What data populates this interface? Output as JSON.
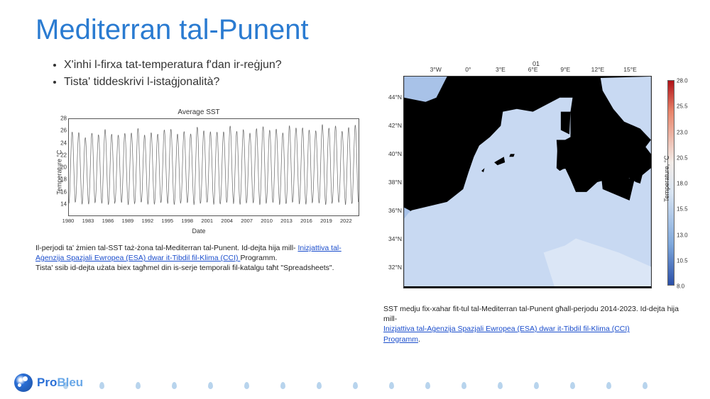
{
  "title": {
    "text": "Mediterran tal-Punent",
    "color": "#2a7bd1",
    "fontsize": 40
  },
  "bullets": [
    "X'inhi l-firxa tat-temperatura f'dan ir-reġjun?",
    "Tista' tiddeskrivi l-istaġjonalità?"
  ],
  "sst_chart": {
    "type": "line",
    "title": "Average SST",
    "ylabel": "Temperature °C",
    "xlabel": "Date",
    "line_color": "#666666",
    "line_width": 0.7,
    "background_color": "#ffffff",
    "border_color": "#555555",
    "xlim": [
      1980,
      2024
    ],
    "ylim": [
      12,
      28
    ],
    "xticks": [
      1980,
      1983,
      1986,
      1989,
      1992,
      1995,
      1998,
      2001,
      2004,
      2007,
      2010,
      2013,
      2016,
      2019,
      2022
    ],
    "yticks": [
      14,
      16,
      18,
      20,
      22,
      24,
      26,
      28
    ],
    "n_cycles": 44,
    "peak_base": 25.5,
    "peak_jitter": 1.5,
    "trough_base": 14.0,
    "trough_jitter": 1.0
  },
  "left_caption": {
    "before_link": "Il-perjodi ta' żmien tal-SST taż-żona tal-Mediterran tal-Punent. Id-dejta hija mill-",
    "link_text": "Inizjattiva tal-Aġenzija Spazjali Ewropea (ESA) dwar it-Tibdil fil-Klima (CCI) ",
    "after_link1": "Programm.",
    "after_link2": "Tista' ssib id-dejta użata biex tagħmel din is-serje temporali fil-katalgu taħt \"Spreadsheets\"."
  },
  "map": {
    "type": "heatmap",
    "title": "01",
    "background_color": "#000000",
    "sea_color": "#c8d9f2",
    "atlantic_color": "#a8c2e8",
    "warm_color": "#dbe6f6",
    "xticks": [
      "3°W",
      "0°",
      "3°E",
      "6°E",
      "9°E",
      "12°E",
      "15°E"
    ],
    "xtick_pos": [
      -3,
      0,
      3,
      6,
      9,
      12,
      15
    ],
    "xlim": [
      -6,
      17
    ],
    "yticks": [
      "32°N",
      "34°N",
      "36°N",
      "38°N",
      "40°N",
      "42°N",
      "44°N"
    ],
    "ytick_pos": [
      32,
      34,
      36,
      38,
      40,
      42,
      44
    ],
    "ylim": [
      30.5,
      45.5
    ],
    "colorbar": {
      "label": "Temperature, °C",
      "min": 8.0,
      "max": 28.0,
      "ticks": [
        8.0,
        10.5,
        13.0,
        15.5,
        18.0,
        20.5,
        23.0,
        25.5,
        28.0
      ],
      "stops": [
        {
          "p": 0,
          "c": "#b01218"
        },
        {
          "p": 15,
          "c": "#e8846a"
        },
        {
          "p": 40,
          "c": "#f2ece8"
        },
        {
          "p": 55,
          "c": "#d8e4f2"
        },
        {
          "p": 80,
          "c": "#7ea8dc"
        },
        {
          "p": 100,
          "c": "#2a4fa8"
        }
      ]
    }
  },
  "right_caption": {
    "before_link": "SST medju fix-xahar fit-tul tal-Mediterran tal-Punent għall-perjodu 2014-2023. Id-dejta hija mill-",
    "link_text": "Inizjattiva tal-Aġenzija Spazjali Ewropea (ESA) dwar it-Tibdil fil-Klima (CCI) ",
    "after_link": "Programm",
    "end": "."
  },
  "logo": {
    "pro": "Pro",
    "bleu": "Bleu"
  }
}
